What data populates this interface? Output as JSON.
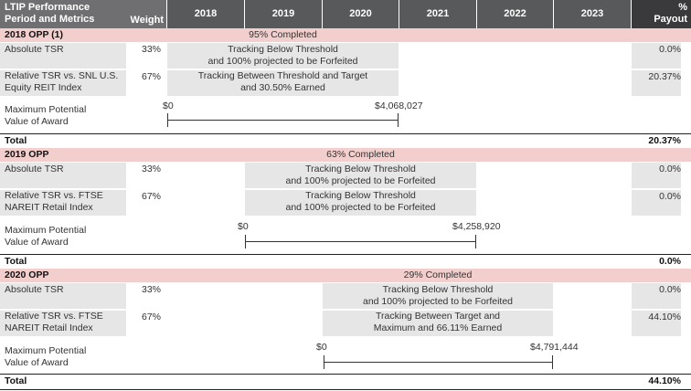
{
  "header": {
    "period_label": "LTIP Performance Period and Metrics",
    "weight_label": "Weight",
    "years": [
      "2018",
      "2019",
      "2020",
      "2021",
      "2022",
      "2023"
    ],
    "payout_label": "% Payout"
  },
  "opp2018": {
    "title": "2018 OPP (1)",
    "completed": "95% Completed",
    "rows": [
      {
        "metric": "Absolute TSR",
        "weight": "33%",
        "status_1": "Tracking Below Threshold",
        "status_2": "and 100% projected to be Forfeited",
        "payout": "0.0%"
      },
      {
        "metric_1": "Relative TSR vs. SNL U.S.",
        "metric_2": "Equity REIT Index",
        "weight": "67%",
        "status_1": "Tracking Between Threshold and Target",
        "status_2": "and 30.50% Earned",
        "payout": "20.37%"
      }
    ],
    "max_label_1": "Maximum Potential",
    "max_label_2": "Value of Award",
    "min_value": "$0",
    "max_value": "$4,068,027",
    "total_label": "Total",
    "total_value": "20.37%"
  },
  "opp2019": {
    "title": "2019 OPP",
    "completed": "63% Completed",
    "rows": [
      {
        "metric": "Absolute TSR",
        "weight": "33%",
        "status_1": "Tracking Below Threshold",
        "status_2": "and 100% projected to be Forfeited",
        "payout": "0.0%"
      },
      {
        "metric_1": "Relative TSR vs. FTSE",
        "metric_2": "NAREIT Retail Index",
        "weight": "67%",
        "status_1": "Tracking Below Threshold",
        "status_2": "and 100% projected to be Forfeited",
        "payout": "0.0%"
      }
    ],
    "max_label_1": "Maximum Potential",
    "max_label_2": "Value of Award",
    "min_value": "$0",
    "max_value": "$4,258,920",
    "total_label": "Total",
    "total_value": "0.0%"
  },
  "opp2020": {
    "title": "2020 OPP",
    "completed": "29% Completed",
    "rows": [
      {
        "metric": "Absolute TSR",
        "weight": "33%",
        "status_1": "Tracking Below Threshold",
        "status_2": "and 100% projected to be Forfeited",
        "payout": "0.0%"
      },
      {
        "metric_1": "Relative TSR vs. FTSE",
        "metric_2": "NAREIT Retail Index",
        "weight": "67%",
        "status_1": "Tracking Between Target and",
        "status_2": "Maximum and 66.11% Earned",
        "payout": "44.10%"
      }
    ],
    "max_label_1": "Maximum Potential",
    "max_label_2": "Value of Award",
    "min_value": "$0",
    "max_value": "$4,791,444",
    "total_label": "Total",
    "total_value": "44.10%"
  }
}
